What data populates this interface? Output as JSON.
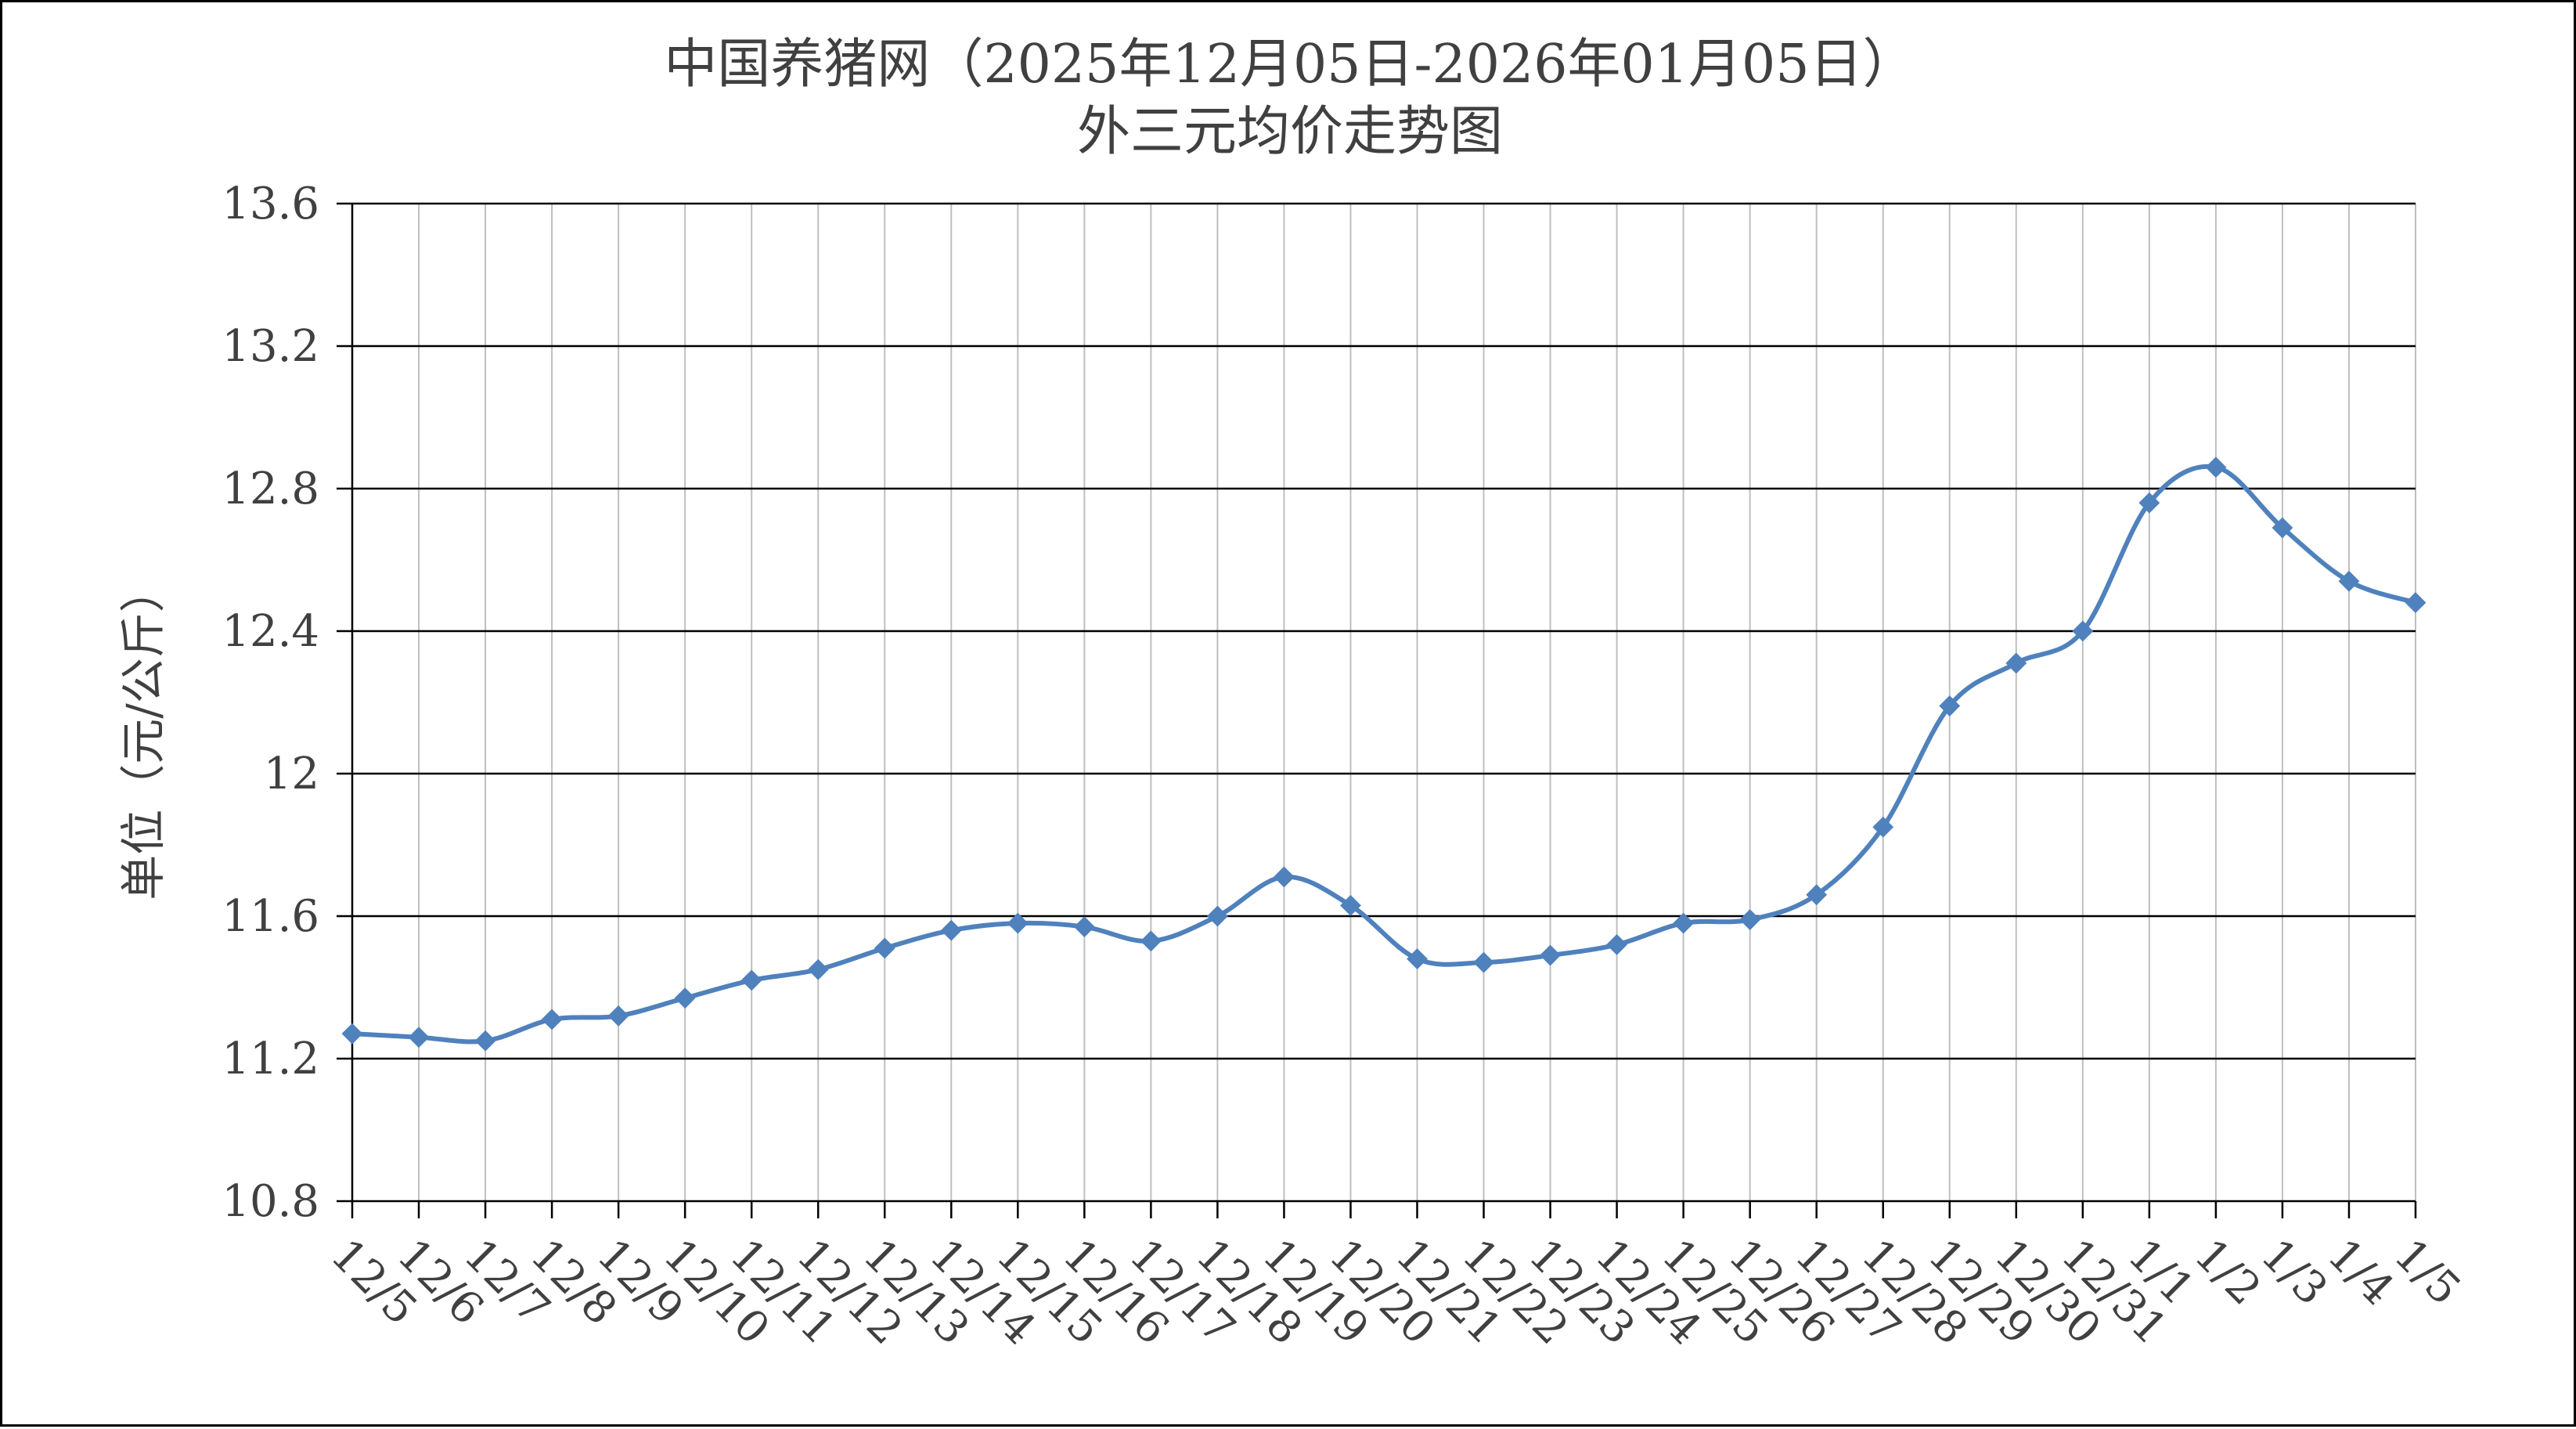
{
  "chart_data": {
    "type": "line",
    "title": [
      "中国养猪网（2025年12月05日-2026年01月05日）",
      "外三元均价走势图"
    ],
    "xlabel": "",
    "ylabel": "单位（元/公斤）",
    "ylim": [
      10.8,
      13.6
    ],
    "yticks": [
      "10.8",
      "11.2",
      "11.6",
      "12",
      "12.4",
      "12.8",
      "13.2",
      "13.6"
    ],
    "grid": true,
    "legend": "none",
    "smooth": true,
    "marker": "diamond",
    "categories": [
      "12/5",
      "12/6",
      "12/7",
      "12/8",
      "12/9",
      "12/10",
      "12/11",
      "12/12",
      "12/13",
      "12/14",
      "12/15",
      "12/16",
      "12/17",
      "12/18",
      "12/19",
      "12/20",
      "12/21",
      "12/22",
      "12/23",
      "12/24",
      "12/25",
      "12/26",
      "12/27",
      "12/28",
      "12/29",
      "12/30",
      "12/31",
      "1/1",
      "1/2",
      "1/3",
      "1/4",
      "1/5"
    ],
    "series": [
      {
        "color": "#4F81BD",
        "values": [
          11.27,
          11.26,
          11.25,
          11.31,
          11.32,
          11.37,
          11.42,
          11.45,
          11.51,
          11.56,
          11.58,
          11.57,
          11.53,
          11.6,
          11.71,
          11.63,
          11.48,
          11.47,
          11.49,
          11.52,
          11.58,
          11.59,
          11.66,
          11.85,
          12.19,
          12.31,
          12.4,
          12.76,
          12.86,
          12.69,
          12.54,
          12.48
        ]
      }
    ]
  },
  "colors": {
    "line": "#4F81BD",
    "major_grid": "#000000",
    "minor_grid": "#bfbfbf",
    "text": "#404040"
  }
}
